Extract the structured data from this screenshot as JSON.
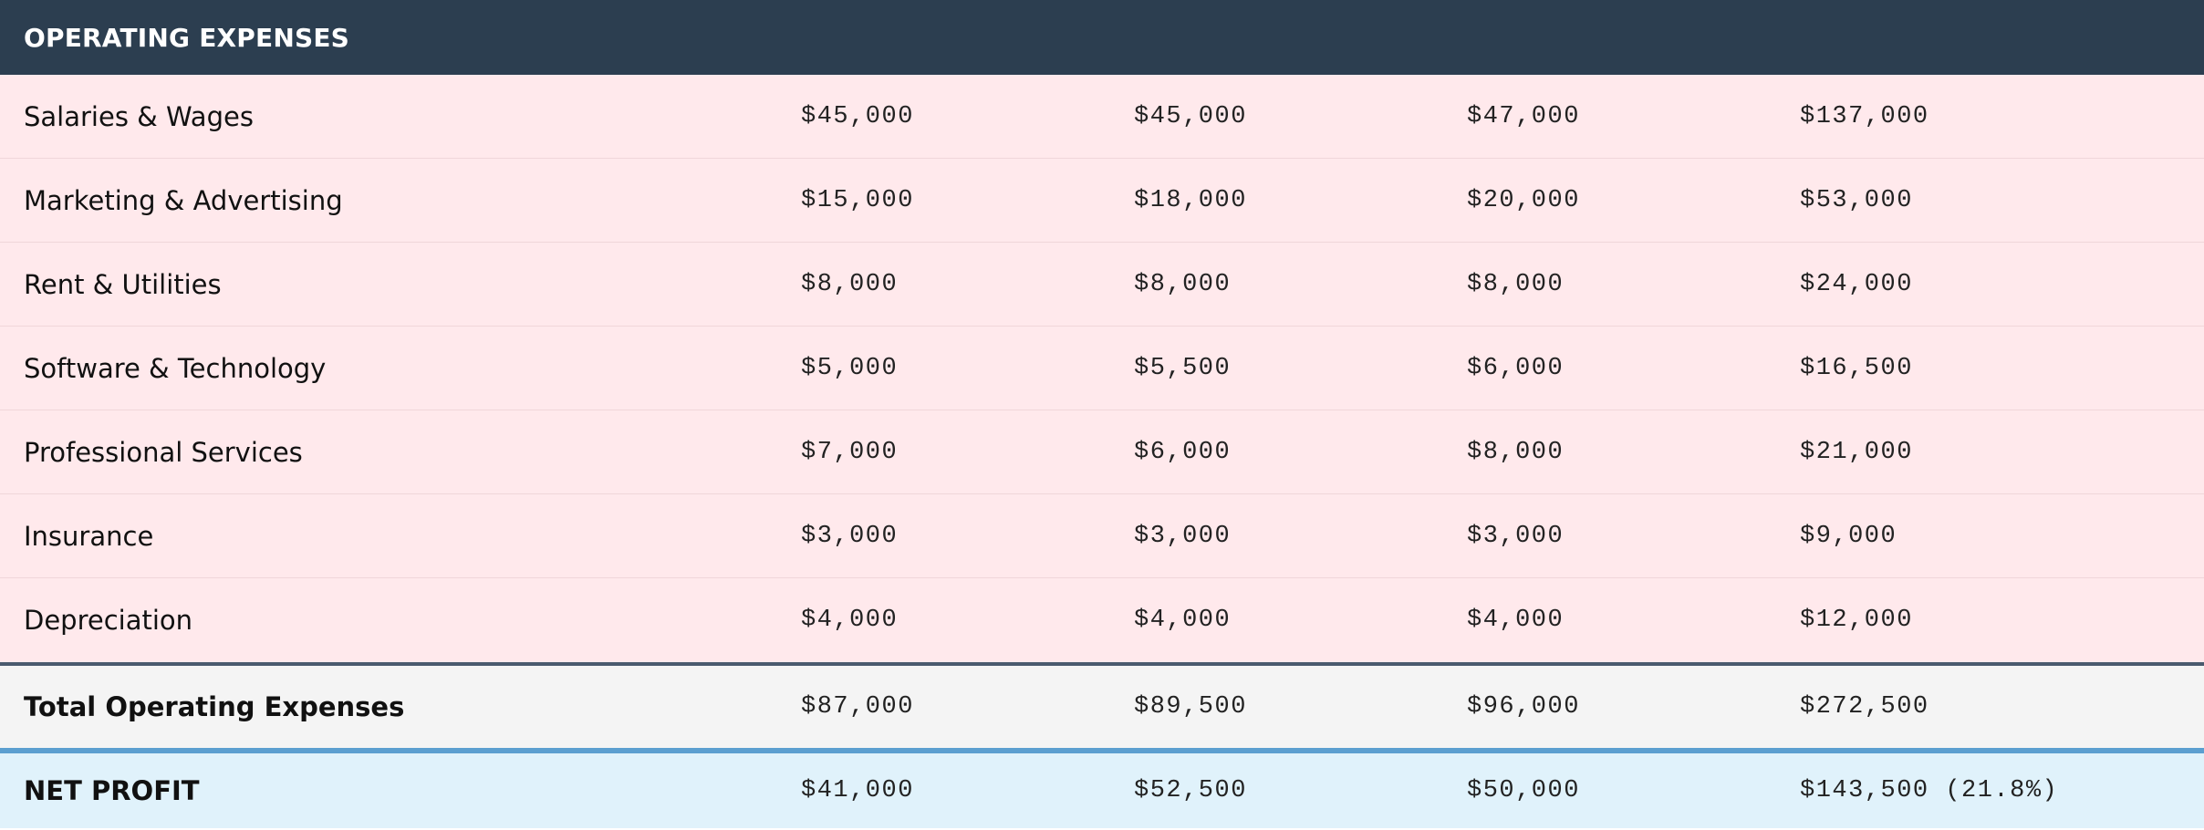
{
  "section": {
    "title": "OPERATING EXPENSES"
  },
  "expenses": [
    {
      "label": "Salaries & Wages",
      "values": [
        "$45,000",
        "$45,000",
        "$47,000",
        "$137,000"
      ]
    },
    {
      "label": "Marketing & Advertising",
      "values": [
        "$15,000",
        "$18,000",
        "$20,000",
        "$53,000"
      ]
    },
    {
      "label": "Rent & Utilities",
      "values": [
        "$8,000",
        "$8,000",
        "$8,000",
        "$24,000"
      ]
    },
    {
      "label": "Software & Technology",
      "values": [
        "$5,000",
        "$5,500",
        "$6,000",
        "$16,500"
      ]
    },
    {
      "label": "Professional Services",
      "values": [
        "$7,000",
        "$6,000",
        "$8,000",
        "$21,000"
      ]
    },
    {
      "label": "Insurance",
      "values": [
        "$3,000",
        "$3,000",
        "$3,000",
        "$9,000"
      ]
    },
    {
      "label": "Depreciation",
      "values": [
        "$4,000",
        "$4,000",
        "$4,000",
        "$12,000"
      ]
    }
  ],
  "total": {
    "label": "Total Operating Expenses",
    "values": [
      "$87,000",
      "$89,500",
      "$96,000",
      "$272,500"
    ]
  },
  "net_profit": {
    "label": "NET PROFIT",
    "values": [
      "$41,000",
      "$52,500",
      "$50,000",
      "$143,500 (21.8%)"
    ]
  },
  "colors": {
    "header_bg": "#2c3e50",
    "expense_row_bg": "#ffe9ec",
    "total_row_bg": "#f4f4f4",
    "net_row_bg": "#e0f2fb",
    "net_row_accent": "#5b9fd0"
  }
}
